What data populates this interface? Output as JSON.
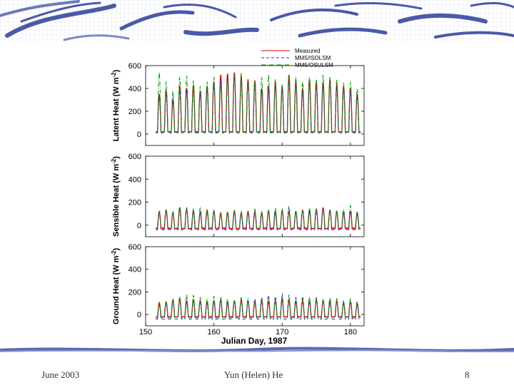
{
  "footer": {
    "date": "June 2003",
    "author": "Yun (Helen) He",
    "page_number": "8"
  },
  "colors": {
    "measured": "#e00000",
    "isolsm": "#2a2ad0",
    "osulsm": "#00a000",
    "banner": "#4a5aa8",
    "band": "#5a6ab4"
  },
  "chart_data": {
    "type": "line",
    "title": "",
    "xlabel": "Julian Day, 1987",
    "xlim": [
      150,
      182
    ],
    "xticks": [
      150,
      160,
      170,
      180
    ],
    "legend": {
      "placement": "top-right",
      "entries": [
        {
          "name": "Measured",
          "style": "solid",
          "color": "#e00000"
        },
        {
          "name": "MM5/ISOLSM",
          "style": "dashed",
          "color": "#2a2ad0"
        },
        {
          "name": "MM5/OSULSM",
          "style": "dash-dot",
          "color": "#00a000"
        }
      ]
    },
    "panels": [
      {
        "id": "latent",
        "ylabel": "Latent Heat (W m-2)",
        "ylabel_main": "Latent Heat (W m",
        "ylabel_sup": "-2",
        "ylim": [
          -100,
          600
        ],
        "yticks": [
          0,
          200,
          400,
          600
        ],
        "series": [
          {
            "name": "Measured",
            "x_start": 151.5,
            "x_end": 182,
            "base": 20,
            "daily_peaks": [
              350,
              380,
              300,
              420,
              400,
              430,
              380,
              420,
              460,
              520,
              530,
              540,
              500,
              480,
              470,
              400,
              420,
              460,
              420,
              520,
              460,
              400,
              480,
              460,
              450,
              480,
              440,
              420,
              400,
              350
            ]
          },
          {
            "name": "MM5/ISOLSM",
            "x_start": 151.5,
            "x_end": 182,
            "base": 10,
            "daily_peaks": [
              330,
              360,
              320,
              380,
              390,
              380,
              360,
              390,
              440,
              480,
              500,
              510,
              470,
              440,
              430,
              380,
              400,
              420,
              400,
              460,
              430,
              380,
              440,
              430,
              420,
              450,
              420,
              400,
              380,
              330
            ]
          },
          {
            "name": "MM5/OSULSM",
            "x_start": 151.5,
            "x_end": 182,
            "base": 15,
            "daily_peaks": [
              540,
              460,
              380,
              500,
              510,
              470,
              420,
              460,
              500,
              420,
              480,
              520,
              540,
              480,
              460,
              500,
              520,
              480,
              440,
              520,
              500,
              460,
              500,
              480,
              520,
              500,
              480,
              450,
              460,
              400
            ]
          }
        ]
      },
      {
        "id": "sensible",
        "ylabel": "Sensible Heat (W m-2)",
        "ylabel_main": "Sensible Heat (W m",
        "ylabel_sup": "-2",
        "ylim": [
          -100,
          600
        ],
        "yticks": [
          0,
          200,
          400,
          600
        ],
        "series": [
          {
            "name": "Measured",
            "x_start": 151.5,
            "x_end": 182,
            "base": -30,
            "daily_peaks": [
              120,
              130,
              110,
              150,
              140,
              120,
              110,
              130,
              120,
              100,
              110,
              120,
              100,
              120,
              110,
              100,
              120,
              110,
              130,
              120,
              110,
              130,
              120,
              140,
              150,
              130,
              120,
              110,
              120,
              100
            ]
          },
          {
            "name": "MM5/ISOLSM",
            "x_start": 151.5,
            "x_end": 182,
            "base": -40,
            "daily_peaks": [
              100,
              120,
              110,
              130,
              150,
              140,
              120,
              110,
              130,
              110,
              100,
              120,
              110,
              100,
              120,
              110,
              130,
              120,
              140,
              160,
              130,
              120,
              130,
              120,
              140,
              130,
              120,
              110,
              120,
              110
            ]
          },
          {
            "name": "MM5/OSULSM",
            "x_start": 151.5,
            "x_end": 182,
            "base": -20,
            "daily_peaks": [
              110,
              140,
              120,
              160,
              140,
              130,
              150,
              140,
              120,
              110,
              120,
              130,
              120,
              110,
              140,
              120,
              130,
              150,
              130,
              140,
              120,
              130,
              150,
              140,
              130,
              120,
              130,
              140,
              170,
              120
            ]
          }
        ]
      },
      {
        "id": "ground",
        "ylabel": "Ground Heat (W m-2)",
        "ylabel_main": "Ground Heat (W m",
        "ylabel_sup": "-2",
        "ylim": [
          -100,
          600
        ],
        "yticks": [
          0,
          200,
          400,
          600
        ],
        "series": [
          {
            "name": "Measured",
            "x_start": 151.5,
            "x_end": 182,
            "base": -20,
            "daily_peaks": [
              100,
              110,
              130,
              140,
              120,
              130,
              120,
              110,
              120,
              130,
              110,
              120,
              130,
              120,
              110,
              120,
              110,
              120,
              130,
              120,
              110,
              120,
              110,
              130,
              120,
              110,
              120,
              100,
              110,
              90
            ]
          },
          {
            "name": "MM5/ISOLSM",
            "x_start": 151.5,
            "x_end": 182,
            "base": -40,
            "daily_peaks": [
              80,
              100,
              120,
              130,
              110,
              120,
              110,
              100,
              110,
              120,
              100,
              110,
              130,
              120,
              140,
              150,
              170,
              160,
              180,
              170,
              150,
              160,
              140,
              150,
              130,
              140,
              120,
              110,
              120,
              100
            ]
          },
          {
            "name": "MM5/OSULSM",
            "x_start": 151.5,
            "x_end": 182,
            "base": -30,
            "daily_peaks": [
              110,
              120,
              140,
              160,
              180,
              170,
              150,
              140,
              160,
              150,
              140,
              130,
              150,
              140,
              130,
              140,
              150,
              140,
              160,
              150,
              130,
              140,
              150,
              140,
              130,
              150,
              140,
              120,
              140,
              120
            ]
          }
        ]
      }
    ]
  }
}
